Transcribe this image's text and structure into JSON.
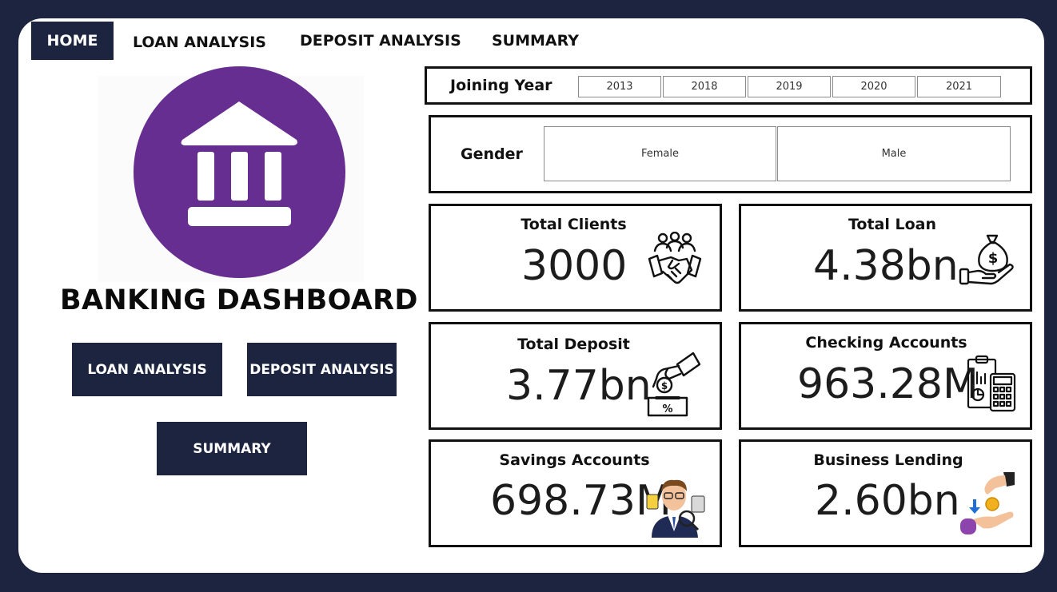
{
  "nav": {
    "home": "HOME",
    "loan_analysis": "LOAN ANALYSIS",
    "deposit_analysis": "DEPOSIT ANALYSIS",
    "summary": "SUMMARY"
  },
  "logo": {
    "icon": "bank-icon",
    "color": "#662e91"
  },
  "title": "BANKING DASHBOARD",
  "buttons": {
    "loan_analysis": "LOAN ANALYSIS",
    "deposit_analysis": "DEPOSIT ANALYSIS",
    "summary": "SUMMARY"
  },
  "filters": {
    "joining_year": {
      "label": "Joining Year",
      "options": [
        "2013",
        "2018",
        "2019",
        "2020",
        "2021"
      ]
    },
    "gender": {
      "label": "Gender",
      "options": [
        "Female",
        "Male"
      ]
    }
  },
  "kpis": {
    "total_clients": {
      "title": "Total Clients",
      "value": "3000",
      "icon": "handshake-clients-icon"
    },
    "total_loan": {
      "title": "Total Loan",
      "value": "4.38bn",
      "icon": "money-bag-hand-icon"
    },
    "total_deposit": {
      "title": "Total Deposit",
      "value": "3.77bn",
      "icon": "deposit-box-icon"
    },
    "checking_accounts": {
      "title": "Checking Accounts",
      "value": "963.28M",
      "icon": "calculator-report-icon"
    },
    "savings_accounts": {
      "title": "Savings Accounts",
      "value": "698.73M",
      "icon": "businessman-icon"
    },
    "business_lending": {
      "title": "Business Lending",
      "value": "2.60bn",
      "icon": "hand-coin-icon"
    }
  },
  "colors": {
    "navy": "#1d2440",
    "accent": "#662e91",
    "white": "#ffffff"
  }
}
